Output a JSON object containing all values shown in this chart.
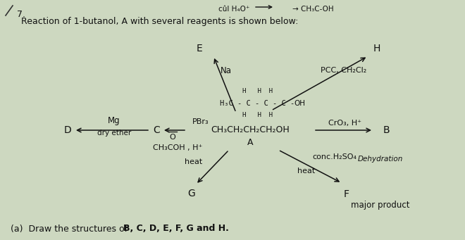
{
  "background_color": "#cdd8c0",
  "title_line1": "Reaction of 1-butanol, A with several reagents is shown below:",
  "header_reagent": "cûl H₄O⁺",
  "header_product": "→ CH₃C-OH",
  "question_num": "7.",
  "central_formula": "CH₃CH₂CH₂CH₂OH",
  "central_label": "A",
  "label_B": "B",
  "label_C": "C",
  "label_D": "D",
  "label_E": "E",
  "label_F": "F",
  "label_G": "G",
  "label_H": "H",
  "reagent_CrO3": "CrO₃, H⁺",
  "reagent_PBr3": "PBr₃",
  "reagent_PCC": "PCC, CH₂Cl₂",
  "reagent_Mg": "Mg",
  "reagent_dryether": "dry ether",
  "reagent_Na": "Na",
  "reagent_acetic": "CH₃COH , H⁺",
  "reagent_acetic_o": "O",
  "reagent_acetic_heat": "heat",
  "reagent_conc": "conc.H₂SO₄",
  "reagent_dehydration": "Dehydration",
  "reagent_heat2": "heat",
  "major_product": "major product",
  "draw_question_a": "(a)  Draw the structures of ",
  "draw_question_b": "B, C, D, E, F, G and H.",
  "struct_line_mid": "H₃C - C - C - C -",
  "struct_hh_top": "H   H  H",
  "struct_hh_bot": "H   H  H",
  "struct_oh": "OH"
}
